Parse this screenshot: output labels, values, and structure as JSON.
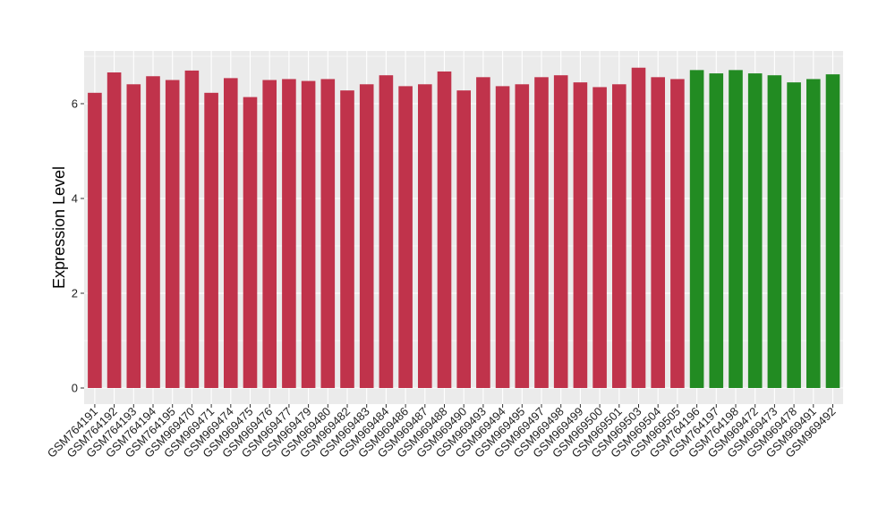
{
  "chart_data": {
    "type": "bar",
    "title": "",
    "xlabel": "",
    "ylabel": "Expression Level",
    "ylim": [
      0,
      7.0
    ],
    "yticks": [
      0,
      2,
      4,
      6
    ],
    "ytick_labels": [
      "0",
      "2",
      "4",
      "6"
    ],
    "grid": true,
    "legend": "none",
    "colors": {
      "group1": "#c0334b",
      "group2": "#228b22"
    },
    "categories": [
      "GSM764191",
      "GSM764192",
      "GSM764193",
      "GSM764194",
      "GSM764195",
      "GSM969470",
      "GSM969471",
      "GSM969474",
      "GSM969475",
      "GSM969476",
      "GSM969477",
      "GSM969479",
      "GSM969480",
      "GSM969482",
      "GSM969483",
      "GSM969484",
      "GSM969486",
      "GSM969487",
      "GSM969488",
      "GSM969490",
      "GSM969493",
      "GSM969494",
      "GSM969495",
      "GSM969497",
      "GSM969498",
      "GSM969499",
      "GSM969500",
      "GSM969501",
      "GSM969503",
      "GSM969504",
      "GSM969505",
      "GSM764196",
      "GSM764197",
      "GSM764198",
      "GSM969472",
      "GSM969473",
      "GSM969478",
      "GSM969491",
      "GSM969492"
    ],
    "values": [
      6.23,
      6.66,
      6.41,
      6.58,
      6.5,
      6.7,
      6.23,
      6.54,
      6.14,
      6.5,
      6.52,
      6.48,
      6.52,
      6.28,
      6.41,
      6.6,
      6.37,
      6.41,
      6.68,
      6.28,
      6.56,
      6.37,
      6.41,
      6.56,
      6.6,
      6.45,
      6.35,
      6.41,
      6.76,
      6.56,
      6.52,
      6.71,
      6.64,
      6.71,
      6.64,
      6.6,
      6.45,
      6.52,
      6.62
    ],
    "groups": [
      "group1",
      "group1",
      "group1",
      "group1",
      "group1",
      "group1",
      "group1",
      "group1",
      "group1",
      "group1",
      "group1",
      "group1",
      "group1",
      "group1",
      "group1",
      "group1",
      "group1",
      "group1",
      "group1",
      "group1",
      "group1",
      "group1",
      "group1",
      "group1",
      "group1",
      "group1",
      "group1",
      "group1",
      "group1",
      "group1",
      "group1",
      "group2",
      "group2",
      "group2",
      "group2",
      "group2",
      "group2",
      "group2",
      "group2"
    ]
  }
}
